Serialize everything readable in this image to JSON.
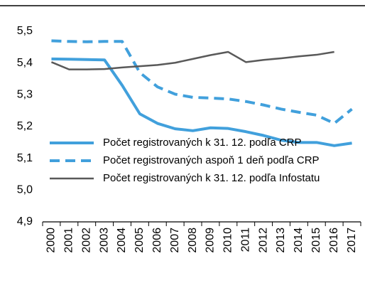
{
  "chart_data": {
    "type": "line",
    "categories": [
      "2000",
      "2001",
      "2002",
      "2003",
      "2004",
      "2005",
      "2006",
      "2007",
      "2008",
      "2009",
      "2010",
      "2011",
      "2012",
      "2013",
      "2014",
      "2015",
      "2016",
      "2017"
    ],
    "series": [
      {
        "name": "Počet registrovaných k 31. 12. podľa CRP",
        "color": "#41a0dc",
        "dash": false,
        "values": [
          5.413,
          5.412,
          5.411,
          5.41,
          5.33,
          5.24,
          5.21,
          5.193,
          5.187,
          5.196,
          5.194,
          5.184,
          5.172,
          5.157,
          5.15,
          5.15,
          5.14,
          5.148
        ]
      },
      {
        "name": "Počet registrovaných aspoň 1 deň podľa CRP",
        "color": "#41a0dc",
        "dash": true,
        "values": [
          5.47,
          5.468,
          5.467,
          5.468,
          5.468,
          5.37,
          5.325,
          5.302,
          5.292,
          5.29,
          5.287,
          5.279,
          5.268,
          5.255,
          5.245,
          5.236,
          5.21,
          5.255
        ]
      },
      {
        "name": "Počet registrovaných k 31. 12. podľa Infostatu",
        "color": "#595959",
        "dash": false,
        "values": [
          5.403,
          5.38,
          5.38,
          5.381,
          5.386,
          5.39,
          5.394,
          5.401,
          5.413,
          5.425,
          5.435,
          5.403,
          5.41,
          5.415,
          5.421,
          5.426,
          5.435,
          null
        ]
      }
    ],
    "ylim": [
      4.9,
      5.5
    ],
    "yticks": [
      {
        "value": 4.9,
        "label": "4,9"
      },
      {
        "value": 5.0,
        "label": "5,0"
      },
      {
        "value": 5.1,
        "label": "5,1"
      },
      {
        "value": 5.2,
        "label": "5,2"
      },
      {
        "value": 5.3,
        "label": "5,3"
      },
      {
        "value": 5.4,
        "label": "5,4"
      },
      {
        "value": 5.5,
        "label": "5,5"
      }
    ],
    "grid": false,
    "legend": "lower left"
  }
}
